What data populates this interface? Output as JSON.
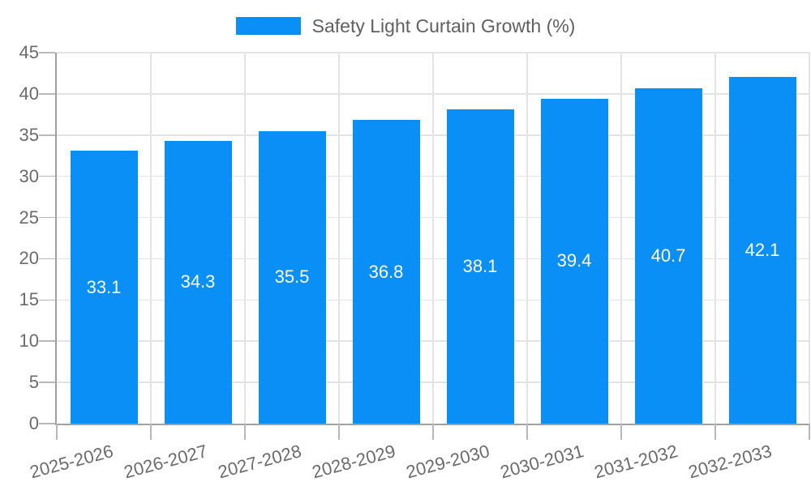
{
  "chart_data": {
    "type": "bar",
    "title": "Safety Light Curtain Growth (%)",
    "legend": [
      "Safety Light Curtain Growth (%)"
    ],
    "legend_position": "top-center",
    "categories": [
      "2025-2026",
      "2026-2027",
      "2027-2028",
      "2028-2029",
      "2029-2030",
      "2030-2031",
      "2031-2032",
      "2032-2033"
    ],
    "values": [
      33.1,
      34.3,
      35.5,
      36.8,
      38.1,
      39.4,
      40.7,
      42.1
    ],
    "bar_labels": [
      "33.1",
      "34.3",
      "35.5",
      "36.8",
      "38.1",
      "39.4",
      "40.7",
      "42.1"
    ],
    "y_tick_labels": [
      "0",
      "5",
      "10",
      "15",
      "20",
      "25",
      "30",
      "35",
      "40",
      "45"
    ],
    "xlabel": "",
    "ylabel": "",
    "ylim": [
      0,
      45
    ],
    "ytick_step": 5,
    "grid": true,
    "x_label_rotation_deg": -15,
    "colors": {
      "bar": "#0a8ff7",
      "bar_value_text": "#ffffff",
      "gridline": "#e3e3e3",
      "axis_line": "#a0a0a0",
      "tick_mark": "#b8b8b8",
      "tick_text": "#6b6b6b",
      "legend_text": "#606060",
      "background": "#ffffff"
    }
  }
}
